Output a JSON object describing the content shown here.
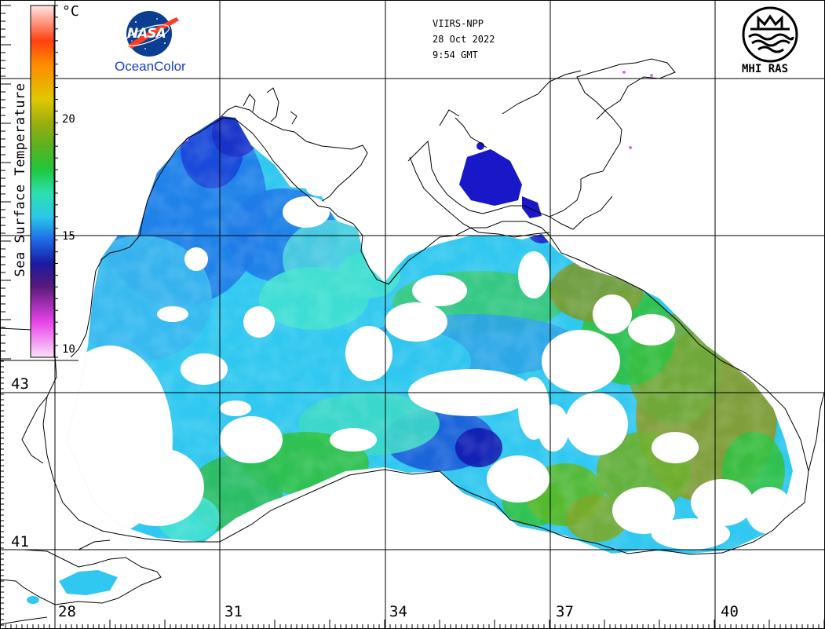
{
  "header": {
    "sensor": "VIIRS-NPP",
    "date": "28 Oct 2022",
    "time": "9:54 GMT"
  },
  "logos": {
    "nasa_text": "NASA",
    "oceancolor_text": "OceanColor",
    "mhi_text": "MHI RAS",
    "colors": {
      "nasa_blue": "#0b3d91",
      "nasa_red": "#fc3d21",
      "oceancolor_blue": "#1a3fd0"
    }
  },
  "colorbar": {
    "title": "Sea Surface Temperature",
    "unit": "°C",
    "ticks": [
      "20",
      "15",
      "10"
    ],
    "range": [
      10,
      25
    ],
    "stops": [
      {
        "v": 10,
        "c": "#fbe0fb"
      },
      {
        "v": 11.5,
        "c": "#e844e8"
      },
      {
        "v": 13,
        "c": "#5a1a7a"
      },
      {
        "v": 14,
        "c": "#1a1aa0"
      },
      {
        "v": 15,
        "c": "#1e6ae8"
      },
      {
        "v": 16,
        "c": "#2bc8e8"
      },
      {
        "v": 17,
        "c": "#2ee0b0"
      },
      {
        "v": 18,
        "c": "#1ec83c"
      },
      {
        "v": 19,
        "c": "#5cb020"
      },
      {
        "v": 20,
        "c": "#9cae10"
      },
      {
        "v": 21,
        "c": "#e0c800"
      },
      {
        "v": 22.5,
        "c": "#ff8a00"
      },
      {
        "v": 23.5,
        "c": "#ff4010"
      },
      {
        "v": 25,
        "c": "#ffe6e6"
      }
    ]
  },
  "axes": {
    "lon_labels": [
      "28",
      "31",
      "34",
      "37",
      "40"
    ],
    "lat_labels": [
      "43",
      "41"
    ]
  },
  "map_colors": {
    "coast": "#000000",
    "grid": "#000000",
    "deep_blue": "#1818c8",
    "blue": "#1e7ae8",
    "cyan": "#30c8f0",
    "aqua": "#40e0d0",
    "green": "#30c040",
    "olive": "#8a9a28",
    "magenta": "#e070e0"
  }
}
